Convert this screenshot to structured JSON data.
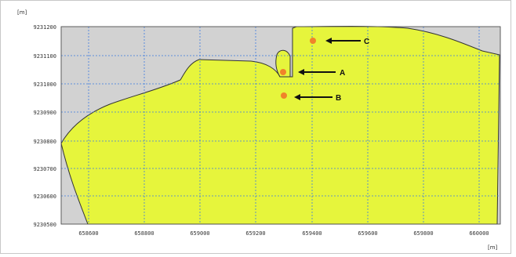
{
  "axes": {
    "y_unit": "[m]",
    "x_unit": "[m]",
    "y_ticks": [
      "9231200",
      "9231100",
      "9231000",
      "9230900",
      "9230800",
      "9230700",
      "9230600",
      "9230500"
    ],
    "x_ticks": [
      "658600",
      "658800",
      "659000",
      "659200",
      "659400",
      "659600",
      "659800",
      "660000"
    ]
  },
  "colors": {
    "land": "#e6f53c",
    "land_edge": "#333333",
    "water": "#d2d2d2",
    "grid": "#3b7be0",
    "marker": "#f0832a"
  },
  "markers": [
    {
      "label": "A"
    },
    {
      "label": "B"
    },
    {
      "label": "C"
    }
  ]
}
